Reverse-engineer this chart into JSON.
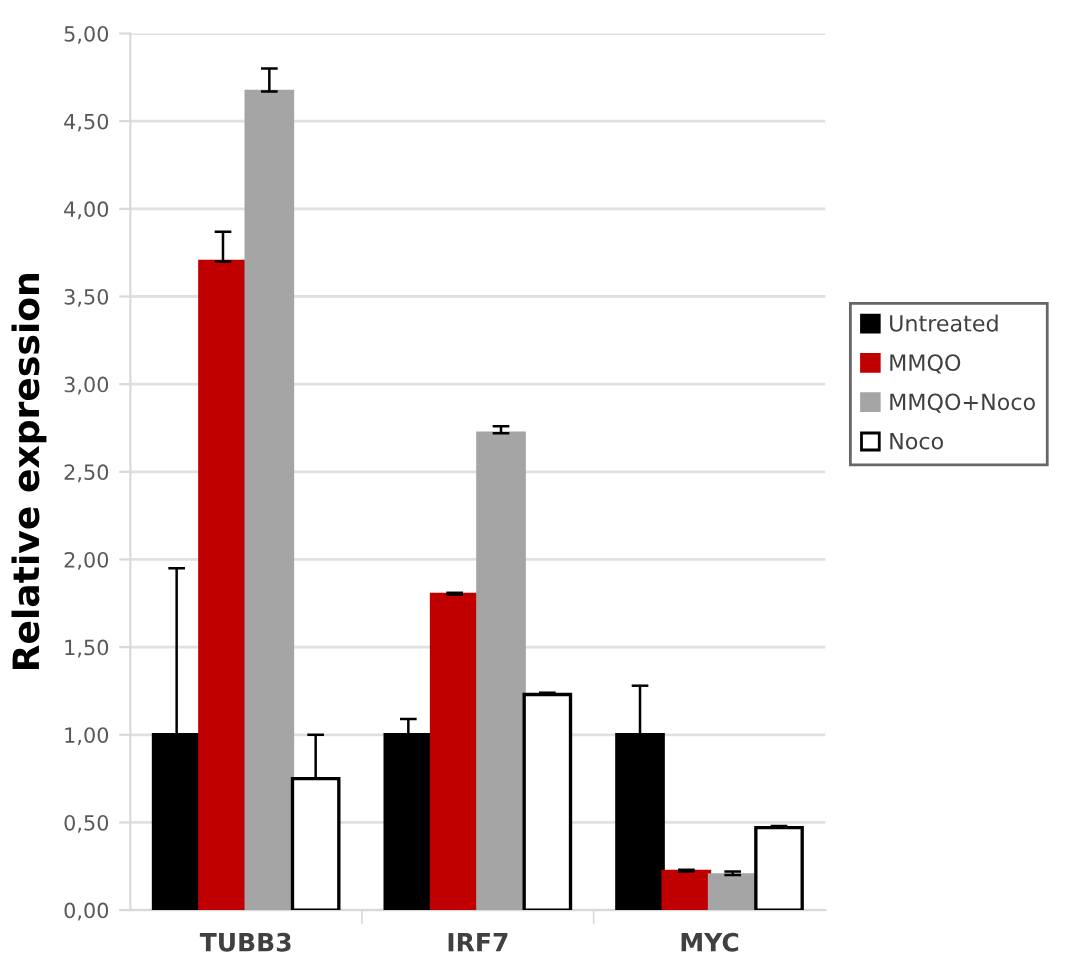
{
  "chart_data": {
    "type": "bar",
    "ylabel": "Relative expression",
    "categories": [
      "TUBB3",
      "IRF7",
      "MYC"
    ],
    "series": [
      {
        "name": "Untreated",
        "color": "#000000",
        "values": [
          1.0,
          1.0,
          1.0
        ],
        "errors": [
          [
            1.0,
            1.95
          ],
          [
            1.0,
            1.09
          ],
          [
            1.0,
            1.28
          ]
        ]
      },
      {
        "name": "MMQO",
        "color": "#c00000",
        "values": [
          3.7,
          1.8,
          0.22
        ],
        "errors": [
          [
            3.7,
            3.87
          ],
          [
            1.8,
            1.81
          ],
          [
            0.22,
            0.23
          ]
        ]
      },
      {
        "name": "MMQO+Noco",
        "color": "#a5a5a5",
        "values": [
          4.67,
          2.72,
          0.2
        ],
        "errors": [
          [
            4.67,
            4.8
          ],
          [
            2.72,
            2.76
          ],
          [
            0.2,
            0.22
          ]
        ]
      },
      {
        "name": "Noco",
        "color": "#ffffff",
        "values": [
          0.75,
          1.23,
          0.47
        ],
        "errors": [
          [
            0.75,
            1.0
          ],
          [
            1.23,
            1.24
          ],
          [
            0.47,
            0.48
          ]
        ]
      }
    ],
    "ylim": [
      0,
      5
    ],
    "yticks": [
      {
        "value": 0,
        "label": "0,00"
      },
      {
        "value": 0.5,
        "label": "0,50"
      },
      {
        "value": 1,
        "label": "1,00"
      },
      {
        "value": 1.5,
        "label": "1,50"
      },
      {
        "value": 2,
        "label": "2,00"
      },
      {
        "value": 2.5,
        "label": "2,50"
      },
      {
        "value": 3,
        "label": "3,00"
      },
      {
        "value": 3.5,
        "label": "3,50"
      },
      {
        "value": 4,
        "label": "4,00"
      },
      {
        "value": 4.5,
        "label": "4,50"
      },
      {
        "value": 5,
        "label": "5,00"
      }
    ],
    "grid": "y",
    "legend": "right"
  }
}
